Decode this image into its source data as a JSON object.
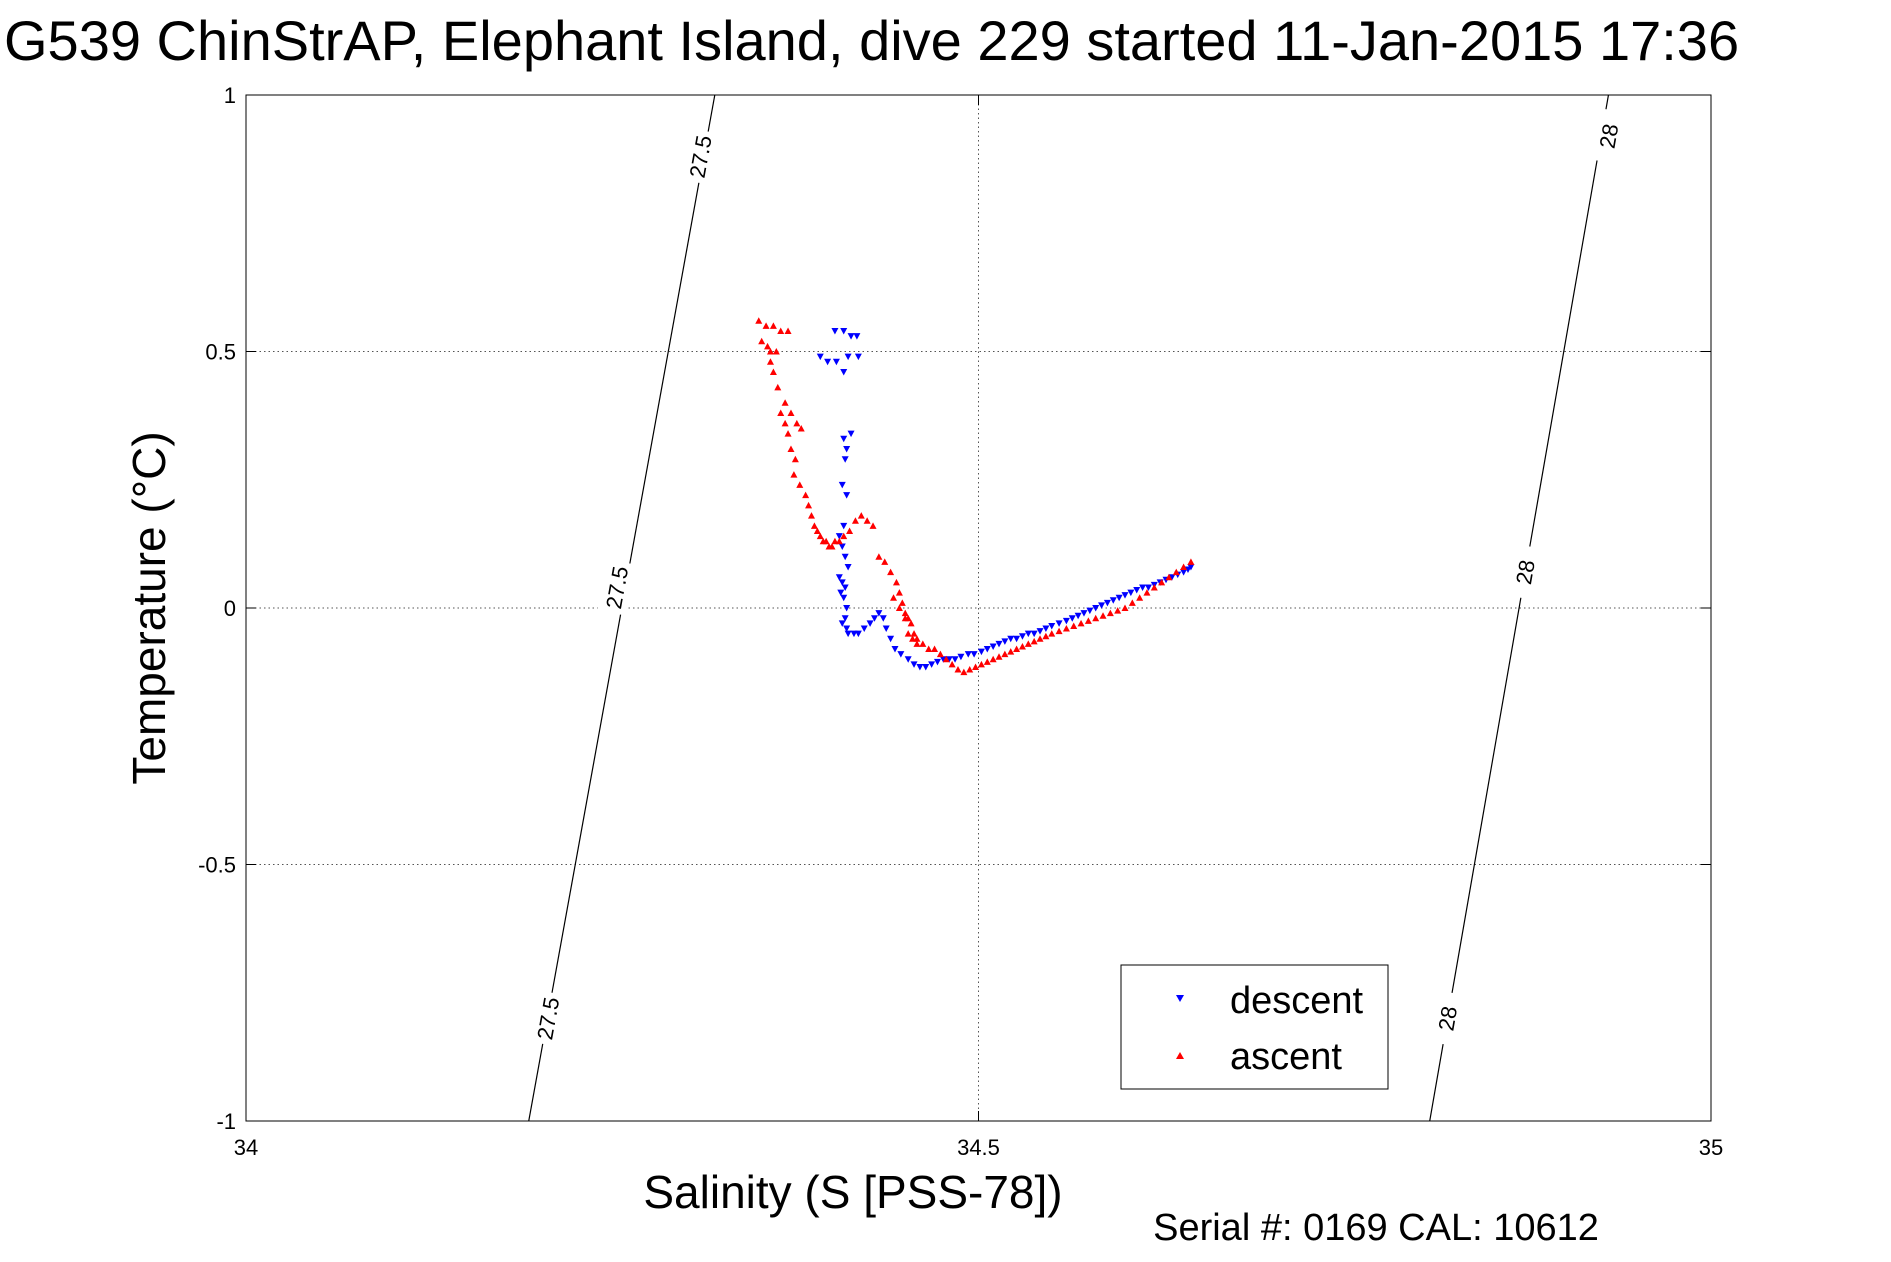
{
  "chart_data": {
    "type": "scatter",
    "title": "G539 ChinStrAP, Elephant Island, dive 229 started 11-Jan-2015 17:36",
    "xlabel": "Salinity (S [PSS-78])",
    "ylabel": "Temperature (°C)",
    "footer": "Serial #: 0169 CAL: 10612",
    "xlim": [
      34,
      35
    ],
    "ylim": [
      -1,
      1
    ],
    "grid": true,
    "legend_position": "bottom-right",
    "x_ticks": [
      {
        "value": 34,
        "label": "34"
      },
      {
        "value": 34.5,
        "label": "34.5"
      },
      {
        "value": 35,
        "label": "35"
      }
    ],
    "y_ticks": [
      {
        "value": -1,
        "label": "-1"
      },
      {
        "value": -0.5,
        "label": "-0.5"
      },
      {
        "value": 0,
        "label": "0"
      },
      {
        "value": 0.5,
        "label": "0.5"
      },
      {
        "value": 1,
        "label": "1"
      }
    ],
    "density_contours": [
      {
        "level": "27.5",
        "points": [
          [
            34.193,
            -1.0
          ],
          [
            34.32,
            1.0
          ]
        ],
        "labels": [
          {
            "text": "27.5",
            "x": 34.206,
            "y": -0.8
          },
          {
            "text": "27.5",
            "x": 34.253,
            "y": 0.04
          },
          {
            "text": "27.5",
            "x": 34.31,
            "y": 0.88
          }
        ]
      },
      {
        "level": "28",
        "points": [
          [
            34.808,
            -1.0
          ],
          [
            34.93,
            1.0
          ]
        ],
        "labels": [
          {
            "text": "28",
            "x": 34.82,
            "y": -0.8
          },
          {
            "text": "28",
            "x": 34.873,
            "y": 0.07
          },
          {
            "text": "28",
            "x": 34.93,
            "y": 0.92
          }
        ]
      }
    ],
    "series": [
      {
        "name": "descent",
        "color": "#0000ff",
        "marker": "triangle-down",
        "x": [
          34.402,
          34.408,
          34.413,
          34.417,
          34.392,
          34.397,
          34.403,
          34.408,
          34.411,
          34.418,
          34.408,
          34.41,
          34.413,
          34.409,
          34.407,
          34.41,
          34.408,
          34.405,
          34.407,
          34.409,
          34.411,
          34.405,
          34.407,
          34.409,
          34.406,
          34.408,
          34.41,
          34.409,
          34.407,
          34.41,
          34.411,
          34.415,
          34.418,
          34.422,
          34.426,
          34.429,
          34.432,
          34.435,
          34.437,
          34.44,
          34.443,
          34.447,
          34.452,
          34.456,
          34.46,
          34.464,
          34.468,
          34.472,
          34.476,
          34.48,
          34.484,
          34.488,
          34.493,
          34.497,
          34.502,
          34.506,
          34.51,
          34.514,
          34.518,
          34.522,
          34.526,
          34.53,
          34.534,
          34.538,
          34.542,
          34.546,
          34.55,
          34.555,
          34.56,
          34.564,
          34.568,
          34.572,
          34.576,
          34.58,
          34.584,
          34.588,
          34.592,
          34.596,
          34.6,
          34.604,
          34.608,
          34.612,
          34.616,
          34.62,
          34.624,
          34.628,
          34.632,
          34.636,
          34.64,
          34.643,
          34.645
        ],
        "y": [
          0.54,
          0.54,
          0.53,
          0.53,
          0.49,
          0.48,
          0.48,
          0.46,
          0.49,
          0.49,
          0.33,
          0.31,
          0.34,
          0.29,
          0.24,
          0.22,
          0.16,
          0.14,
          0.12,
          0.1,
          0.08,
          0.06,
          0.05,
          0.04,
          0.03,
          0.02,
          0.0,
          -0.02,
          -0.03,
          -0.04,
          -0.05,
          -0.05,
          -0.05,
          -0.04,
          -0.03,
          -0.02,
          -0.01,
          -0.02,
          -0.04,
          -0.06,
          -0.08,
          -0.09,
          -0.1,
          -0.11,
          -0.115,
          -0.115,
          -0.11,
          -0.105,
          -0.1,
          -0.1,
          -0.1,
          -0.095,
          -0.09,
          -0.09,
          -0.085,
          -0.08,
          -0.075,
          -0.07,
          -0.065,
          -0.06,
          -0.06,
          -0.055,
          -0.05,
          -0.05,
          -0.045,
          -0.04,
          -0.035,
          -0.03,
          -0.025,
          -0.02,
          -0.015,
          -0.01,
          -0.005,
          0.0,
          0.005,
          0.01,
          0.015,
          0.02,
          0.025,
          0.03,
          0.035,
          0.04,
          0.04,
          0.045,
          0.05,
          0.055,
          0.06,
          0.065,
          0.07,
          0.075,
          0.08
        ]
      },
      {
        "name": "ascent",
        "color": "#ff0000",
        "marker": "triangle-up",
        "x": [
          34.35,
          34.355,
          34.36,
          34.365,
          34.37,
          34.352,
          34.356,
          34.358,
          34.362,
          34.358,
          34.36,
          34.363,
          34.368,
          34.372,
          34.376,
          34.379,
          34.365,
          34.368,
          34.37,
          34.372,
          34.375,
          34.374,
          34.378,
          34.382,
          34.384,
          34.386,
          34.388,
          34.39,
          34.392,
          34.394,
          34.396,
          34.398,
          34.4,
          34.402,
          34.405,
          34.408,
          34.412,
          34.416,
          34.42,
          34.424,
          34.428,
          34.432,
          34.436,
          34.44,
          34.444,
          34.446,
          34.448,
          34.45,
          34.452,
          34.454,
          34.456,
          34.458,
          34.442,
          34.446,
          34.45,
          34.452,
          34.455,
          34.458,
          34.462,
          34.466,
          34.47,
          34.474,
          34.478,
          34.482,
          34.486,
          34.49,
          34.494,
          34.498,
          34.502,
          34.506,
          34.51,
          34.514,
          34.518,
          34.522,
          34.526,
          34.53,
          34.534,
          34.538,
          34.542,
          34.546,
          34.55,
          34.555,
          34.56,
          34.565,
          34.57,
          34.575,
          34.58,
          34.585,
          34.59,
          34.595,
          34.6,
          34.605,
          34.61,
          34.615,
          34.62,
          34.625,
          34.63,
          34.635,
          34.64,
          34.645
        ],
        "y": [
          0.56,
          0.55,
          0.55,
          0.54,
          0.54,
          0.52,
          0.51,
          0.5,
          0.5,
          0.48,
          0.46,
          0.43,
          0.4,
          0.38,
          0.36,
          0.35,
          0.38,
          0.36,
          0.34,
          0.31,
          0.29,
          0.26,
          0.24,
          0.22,
          0.2,
          0.18,
          0.16,
          0.15,
          0.14,
          0.13,
          0.13,
          0.12,
          0.12,
          0.13,
          0.13,
          0.14,
          0.15,
          0.17,
          0.18,
          0.17,
          0.16,
          0.1,
          0.09,
          0.07,
          0.05,
          0.03,
          0.01,
          -0.01,
          -0.02,
          -0.03,
          -0.05,
          -0.06,
          0.02,
          0.0,
          -0.02,
          -0.05,
          -0.06,
          -0.07,
          -0.07,
          -0.08,
          -0.08,
          -0.09,
          -0.1,
          -0.11,
          -0.12,
          -0.125,
          -0.12,
          -0.115,
          -0.11,
          -0.105,
          -0.1,
          -0.095,
          -0.09,
          -0.085,
          -0.08,
          -0.075,
          -0.07,
          -0.065,
          -0.06,
          -0.055,
          -0.05,
          -0.045,
          -0.04,
          -0.035,
          -0.03,
          -0.025,
          -0.02,
          -0.015,
          -0.01,
          -0.005,
          0.0,
          0.01,
          0.02,
          0.03,
          0.04,
          0.05,
          0.06,
          0.07,
          0.08,
          0.09
        ]
      }
    ]
  }
}
